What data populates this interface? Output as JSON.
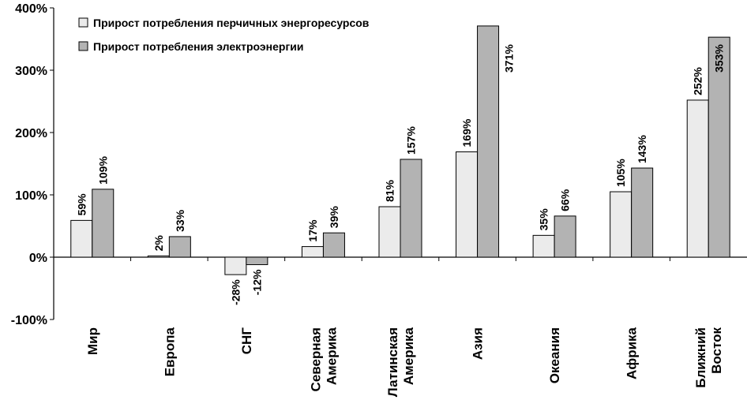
{
  "chart_data": {
    "type": "bar",
    "categories": [
      [
        "Мир"
      ],
      [
        "Европа"
      ],
      [
        "СНГ"
      ],
      [
        "Северная",
        "Америка"
      ],
      [
        "Латинская",
        "Америка"
      ],
      [
        "Азия"
      ],
      [
        "Океания"
      ],
      [
        "Африка"
      ],
      [
        "Ближний",
        "Восток"
      ]
    ],
    "series": [
      {
        "name": "Прирост потребления перчичных энергоресурсов",
        "values": [
          59,
          2,
          -28,
          17,
          81,
          169,
          35,
          105,
          252
        ],
        "labels": [
          "59%",
          "2%",
          "-28%",
          "17%",
          "81%",
          "169%",
          "35%",
          "105%",
          "252%"
        ],
        "color": "#ebebeb"
      },
      {
        "name": "Прирост потребления электроэнергии",
        "values": [
          109,
          33,
          -12,
          39,
          157,
          371,
          66,
          143,
          353
        ],
        "labels": [
          "109%",
          "33%",
          "-12%",
          "39%",
          "157%",
          "371%",
          "66%",
          "143%",
          "353%"
        ],
        "color": "#b3b3b3"
      }
    ],
    "yticks": [
      {
        "value": 400,
        "label": "400%"
      },
      {
        "value": 300,
        "label": "300%"
      },
      {
        "value": 200,
        "label": "200%"
      },
      {
        "value": 100,
        "label": "100%"
      },
      {
        "value": 0,
        "label": "0%"
      },
      {
        "value": -100,
        "label": "-100%"
      }
    ],
    "ylim": [
      -100,
      400
    ],
    "title": "",
    "xlabel": "",
    "ylabel": "",
    "grid": false,
    "legend": "top-left"
  }
}
